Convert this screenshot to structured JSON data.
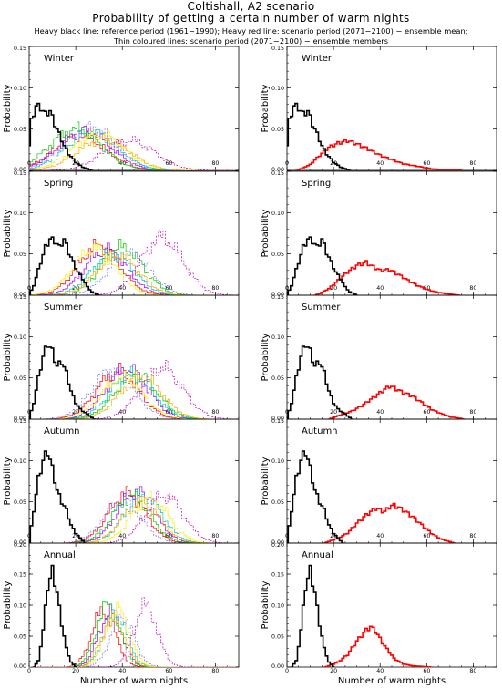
{
  "header": {
    "title": "Coltishall, A2 scenario",
    "subtitle": "Probability of getting a certain number of warm nights",
    "legend_line1": "Heavy black line: reference period (1961−1990); Heavy red line: scenario period (2071−2100) − ensemble mean;",
    "legend_line2": "Thin coloured lines: scenario period (2071−2100) − ensemble members"
  },
  "chart_data": {
    "type": "line",
    "step": true,
    "xlabel": "Number of warm nights",
    "ylabel": "Probability",
    "xlim": [
      0,
      90
    ],
    "x_ticks": [
      0,
      20,
      40,
      60,
      80
    ],
    "colors": {
      "reference": "#000000",
      "ensemble_mean": "#ff0000",
      "members": [
        "#ff0000",
        "#9900ff",
        "#00c8c8",
        "#00cc00",
        "#ffee00",
        "#7777ff",
        "#ffaa00",
        "#c000c0"
      ]
    },
    "panels": [
      {
        "season": "Winter",
        "ylim": [
          0,
          0.15
        ],
        "y_ticks": [
          "0.00",
          "0.05",
          "0.10",
          "0.15"
        ],
        "reference": {
          "x": [
            1,
            3,
            5,
            7,
            9,
            11,
            13,
            15,
            17,
            20,
            23,
            27
          ],
          "y": [
            0.06,
            0.078,
            0.076,
            0.068,
            0.072,
            0.056,
            0.044,
            0.03,
            0.02,
            0.01,
            0.004,
            0.0
          ]
        },
        "ensemble_mean": {
          "x": [
            6,
            10,
            14,
            18,
            22,
            26,
            30,
            34,
            38,
            42,
            46,
            50,
            54,
            58,
            62,
            66,
            70,
            75
          ],
          "y": [
            0.002,
            0.007,
            0.018,
            0.028,
            0.033,
            0.036,
            0.032,
            0.027,
            0.021,
            0.016,
            0.012,
            0.008,
            0.006,
            0.004,
            0.002,
            0.001,
            0.001,
            0.0
          ]
        },
        "member_peaks": [
          [
            22,
            0.042
          ],
          [
            24,
            0.048
          ],
          [
            27,
            0.046
          ],
          [
            20,
            0.05
          ],
          [
            30,
            0.044
          ],
          [
            26,
            0.052
          ],
          [
            32,
            0.038
          ],
          [
            43,
            0.036
          ]
        ],
        "member_spread": 11
      },
      {
        "season": "Spring",
        "ylim": [
          0,
          0.15
        ],
        "y_ticks": [
          "0.00",
          "0.05",
          "0.10",
          "0.15"
        ],
        "reference": {
          "x": [
            2,
            5,
            7,
            9,
            11,
            13,
            15,
            17,
            19,
            21,
            23,
            25,
            27,
            30
          ],
          "y": [
            0.012,
            0.04,
            0.058,
            0.068,
            0.066,
            0.058,
            0.068,
            0.052,
            0.04,
            0.028,
            0.02,
            0.01,
            0.004,
            0.0
          ]
        },
        "ensemble_mean": {
          "x": [
            14,
            18,
            22,
            26,
            30,
            34,
            36,
            40,
            44,
            48,
            52,
            56,
            60,
            64,
            68,
            74
          ],
          "y": [
            0.002,
            0.008,
            0.018,
            0.028,
            0.036,
            0.04,
            0.036,
            0.03,
            0.031,
            0.025,
            0.018,
            0.012,
            0.007,
            0.004,
            0.002,
            0.0
          ]
        },
        "member_peaks": [
          [
            30,
            0.06
          ],
          [
            33,
            0.055
          ],
          [
            36,
            0.05
          ],
          [
            40,
            0.058
          ],
          [
            28,
            0.056
          ],
          [
            43,
            0.05
          ],
          [
            38,
            0.048
          ],
          [
            57,
            0.07
          ]
        ],
        "member_spread": 9
      },
      {
        "season": "Summer",
        "ylim": [
          0,
          0.15
        ],
        "y_ticks": [
          "0.00",
          "0.05",
          "0.10",
          "0.15"
        ],
        "reference": {
          "x": [
            2,
            4,
            6,
            8,
            10,
            12,
            14,
            16,
            18,
            20,
            22,
            24,
            26,
            28
          ],
          "y": [
            0.02,
            0.05,
            0.076,
            0.092,
            0.082,
            0.064,
            0.07,
            0.056,
            0.034,
            0.02,
            0.012,
            0.008,
            0.004,
            0.0
          ]
        },
        "ensemble_mean": {
          "x": [
            20,
            24,
            28,
            32,
            36,
            40,
            44,
            46,
            50,
            54,
            58,
            62,
            66,
            70,
            76
          ],
          "y": [
            0.002,
            0.006,
            0.01,
            0.016,
            0.024,
            0.032,
            0.04,
            0.038,
            0.032,
            0.028,
            0.02,
            0.012,
            0.007,
            0.003,
            0.0
          ]
        },
        "member_peaks": [
          [
            38,
            0.058
          ],
          [
            42,
            0.06
          ],
          [
            44,
            0.056
          ],
          [
            46,
            0.054
          ],
          [
            40,
            0.05
          ],
          [
            36,
            0.06
          ],
          [
            48,
            0.052
          ],
          [
            57,
            0.062
          ]
        ],
        "member_spread": 9
      },
      {
        "season": "Autumn",
        "ylim": [
          0,
          0.15
        ],
        "y_ticks": [
          "0.00",
          "0.05",
          "0.10",
          "0.15"
        ],
        "reference": {
          "x": [
            2,
            4,
            6,
            8,
            10,
            12,
            14,
            16,
            18,
            20,
            22,
            24
          ],
          "y": [
            0.04,
            0.078,
            0.1,
            0.112,
            0.09,
            0.064,
            0.05,
            0.04,
            0.022,
            0.012,
            0.006,
            0.0
          ]
        },
        "ensemble_mean": {
          "x": [
            18,
            22,
            26,
            30,
            34,
            38,
            42,
            44,
            46,
            50,
            54,
            58,
            62,
            66,
            72
          ],
          "y": [
            0.002,
            0.006,
            0.012,
            0.024,
            0.034,
            0.042,
            0.038,
            0.044,
            0.046,
            0.04,
            0.032,
            0.022,
            0.012,
            0.005,
            0.0
          ]
        },
        "member_peaks": [
          [
            42,
            0.06
          ],
          [
            46,
            0.062
          ],
          [
            49,
            0.058
          ],
          [
            44,
            0.056
          ],
          [
            52,
            0.054
          ],
          [
            40,
            0.05
          ],
          [
            48,
            0.05
          ],
          [
            58,
            0.058
          ]
        ],
        "member_spread": 8
      },
      {
        "season": "Annual",
        "ylim": [
          0,
          0.2
        ],
        "y_ticks": [
          "0.00",
          "0.05",
          "0.10",
          "0.15",
          "0.20"
        ],
        "reference": {
          "x": [
            4,
            6,
            8,
            10,
            12,
            14,
            16,
            18,
            20
          ],
          "y": [
            0.01,
            0.06,
            0.13,
            0.156,
            0.12,
            0.07,
            0.03,
            0.008,
            0.0
          ]
        },
        "ensemble_mean": {
          "x": [
            18,
            22,
            26,
            30,
            34,
            36,
            38,
            42,
            46,
            50,
            54,
            58,
            62
          ],
          "y": [
            0.002,
            0.008,
            0.02,
            0.042,
            0.06,
            0.065,
            0.058,
            0.034,
            0.014,
            0.005,
            0.002,
            0.001,
            0.0
          ]
        },
        "member_peaks": [
          [
            32,
            0.09
          ],
          [
            35,
            0.088
          ],
          [
            37,
            0.086
          ],
          [
            34,
            0.1
          ],
          [
            38,
            0.092
          ],
          [
            40,
            0.082
          ],
          [
            36,
            0.078
          ],
          [
            50,
            0.098
          ]
        ],
        "member_spread": 5
      }
    ]
  }
}
